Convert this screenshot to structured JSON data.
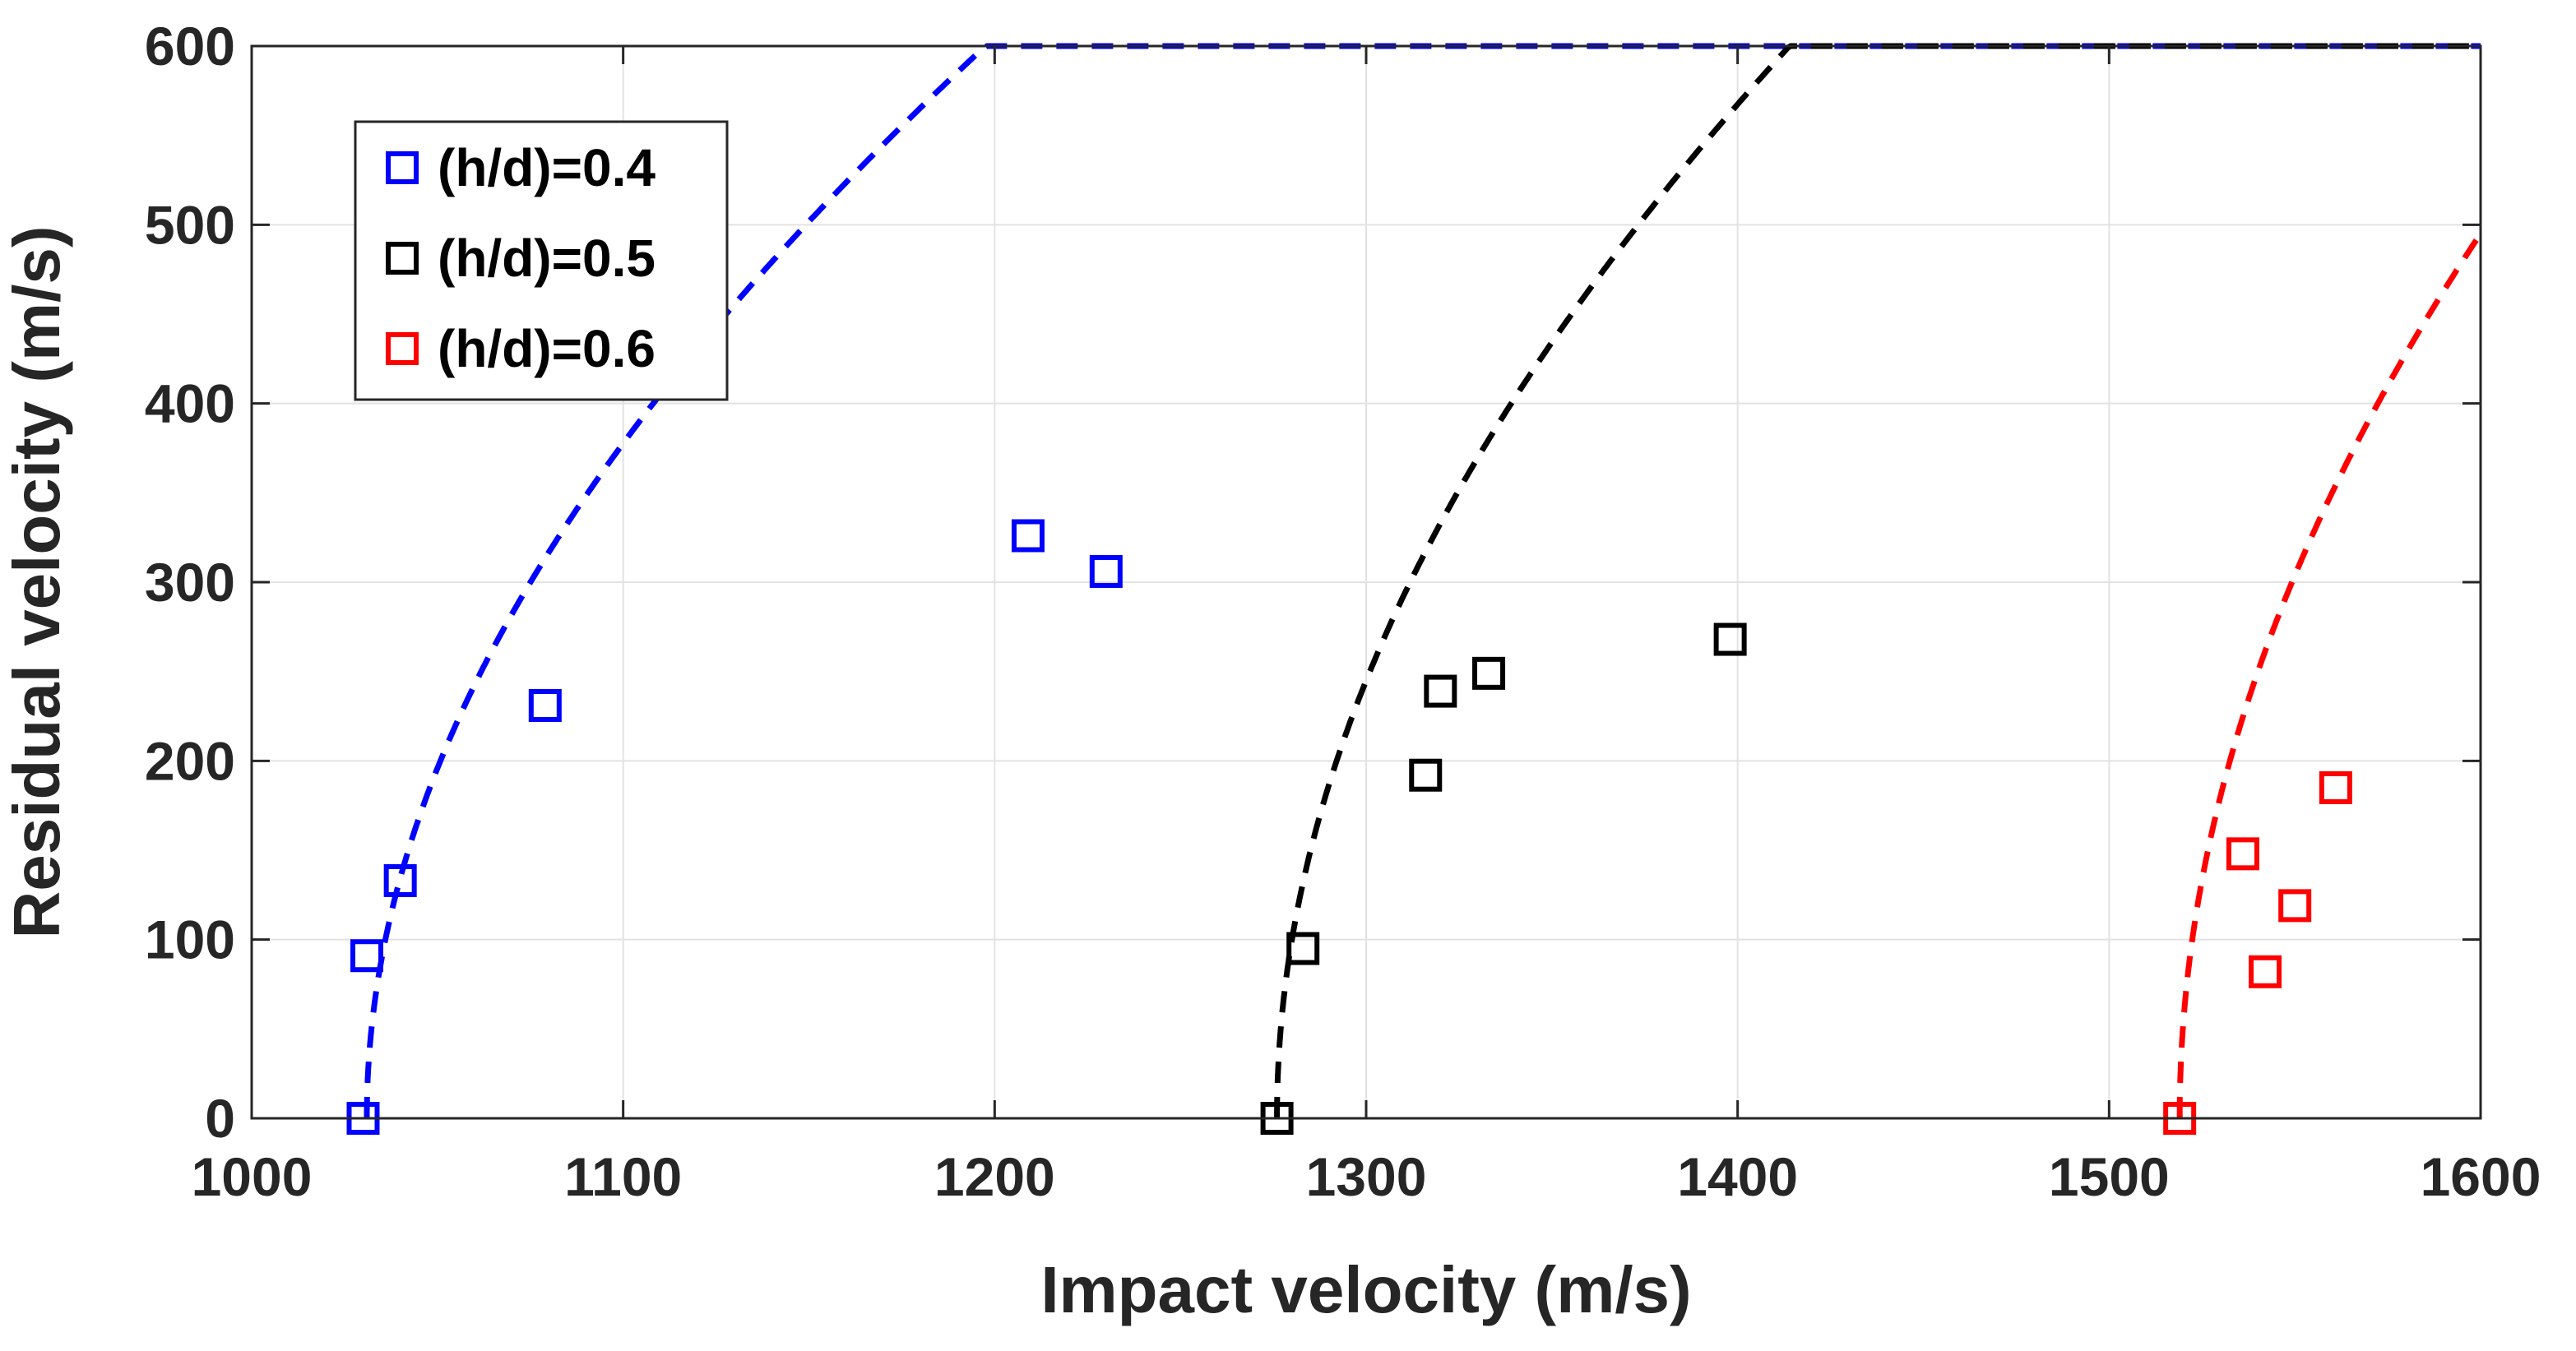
{
  "chart_data": {
    "type": "scatter",
    "title": "",
    "xlabel": "Impact velocity (m/s)",
    "ylabel": "Residual velocity (m/s)",
    "xlim": [
      1000,
      1600
    ],
    "ylim": [
      0,
      600
    ],
    "xticks": [
      1000,
      1100,
      1200,
      1300,
      1400,
      1500,
      1600
    ],
    "yticks": [
      0,
      100,
      200,
      300,
      400,
      500,
      600
    ],
    "grid": true,
    "legend_position": "top-left",
    "series": [
      {
        "name": "(h/d)=0.4",
        "color": "#0000ff",
        "marker": "square",
        "points": [
          [
            1030,
            0
          ],
          [
            1031,
            91
          ],
          [
            1040,
            133
          ],
          [
            1079,
            231
          ],
          [
            1209,
            326
          ],
          [
            1230,
            306
          ]
        ],
        "fit": {
          "v_bl": 1031,
          "a": 0.985,
          "p": 0.5,
          "style": "dashed"
        }
      },
      {
        "name": "(h/d)=0.5",
        "color": "#000000",
        "marker": "square",
        "points": [
          [
            1276,
            0
          ],
          [
            1283,
            95
          ],
          [
            1316,
            192
          ],
          [
            1320,
            239
          ],
          [
            1333,
            249
          ],
          [
            1398,
            268
          ]
        ],
        "fit": {
          "v_bl": 1276,
          "a": 0.985,
          "p": 0.5,
          "style": "dashed"
        }
      },
      {
        "name": "(h/d)=0.6",
        "color": "#ff0000",
        "marker": "square",
        "points": [
          [
            1519,
            0
          ],
          [
            1536,
            148
          ],
          [
            1542,
            82
          ],
          [
            1550,
            119
          ],
          [
            1561,
            185
          ]
        ],
        "fit": {
          "v_bl": 1519,
          "a": 0.985,
          "p": 0.5,
          "style": "dashed"
        }
      }
    ]
  }
}
